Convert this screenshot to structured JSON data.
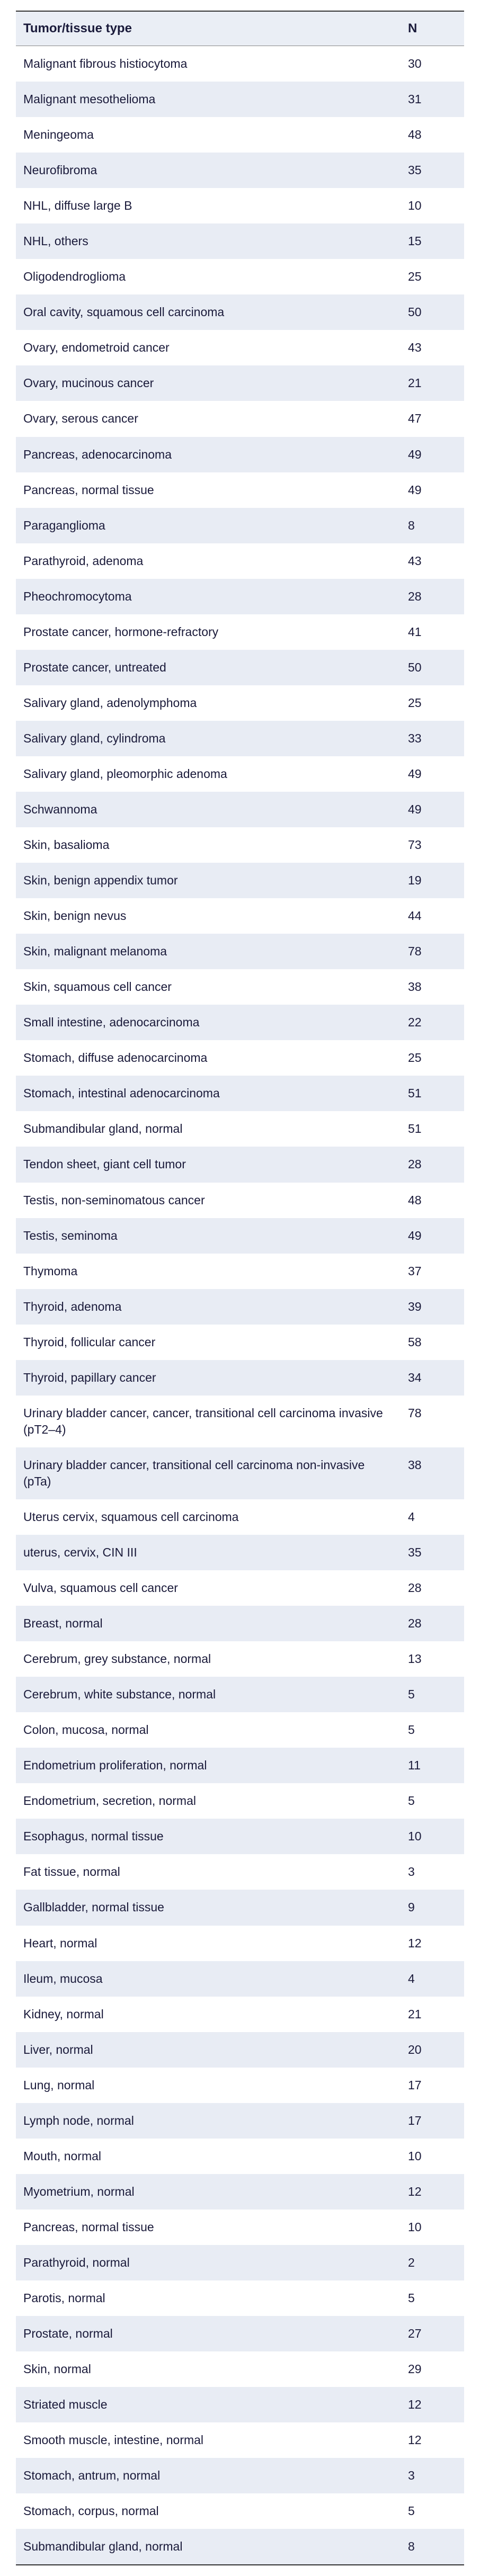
{
  "header": {
    "col1": "Tumor/tissue type",
    "col2": "N"
  },
  "rows": [
    {
      "name": "Malignant fibrous histiocytoma",
      "n": "30"
    },
    {
      "name": "Malignant mesothelioma",
      "n": "31"
    },
    {
      "name": "Meningeoma",
      "n": "48"
    },
    {
      "name": "Neurofibroma",
      "n": "35"
    },
    {
      "name": "NHL, diffuse large B",
      "n": "10"
    },
    {
      "name": "NHL, others",
      "n": "15"
    },
    {
      "name": "Oligodendroglioma",
      "n": "25"
    },
    {
      "name": "Oral cavity, squamous cell carcinoma",
      "n": "50"
    },
    {
      "name": "Ovary, endometroid cancer",
      "n": "43"
    },
    {
      "name": "Ovary, mucinous cancer",
      "n": "21"
    },
    {
      "name": "Ovary, serous cancer",
      "n": "47"
    },
    {
      "name": "Pancreas, adenocarcinoma",
      "n": "49"
    },
    {
      "name": "Pancreas, normal tissue",
      "n": "49"
    },
    {
      "name": "Paraganglioma",
      "n": "8"
    },
    {
      "name": "Parathyroid, adenoma",
      "n": "43"
    },
    {
      "name": "Pheochromocytoma",
      "n": "28"
    },
    {
      "name": "Prostate cancer, hormone-refractory",
      "n": "41"
    },
    {
      "name": "Prostate cancer, untreated",
      "n": "50"
    },
    {
      "name": "Salivary gland, adenolymphoma",
      "n": "25"
    },
    {
      "name": "Salivary gland, cylindroma",
      "n": "33"
    },
    {
      "name": "Salivary gland, pleomorphic adenoma",
      "n": "49"
    },
    {
      "name": "Schwannoma",
      "n": "49"
    },
    {
      "name": "Skin, basalioma",
      "n": "73"
    },
    {
      "name": "Skin, benign appendix tumor",
      "n": "19"
    },
    {
      "name": "Skin, benign nevus",
      "n": "44"
    },
    {
      "name": "Skin, malignant melanoma",
      "n": "78"
    },
    {
      "name": "Skin, squamous cell cancer",
      "n": "38"
    },
    {
      "name": "Small intestine, adenocarcinoma",
      "n": "22"
    },
    {
      "name": "Stomach, diffuse adenocarcinoma",
      "n": "25"
    },
    {
      "name": "Stomach, intestinal adenocarcinoma",
      "n": "51"
    },
    {
      "name": "Submandibular gland, normal",
      "n": "51"
    },
    {
      "name": "Tendon sheet, giant cell tumor",
      "n": "28"
    },
    {
      "name": "Testis, non-seminomatous cancer",
      "n": "48"
    },
    {
      "name": "Testis, seminoma",
      "n": "49"
    },
    {
      "name": "Thymoma",
      "n": "37"
    },
    {
      "name": "Thyroid, adenoma",
      "n": "39"
    },
    {
      "name": "Thyroid, follicular cancer",
      "n": "58"
    },
    {
      "name": "Thyroid, papillary cancer",
      "n": "34"
    },
    {
      "name": "Urinary bladder cancer, cancer, transitional cell carcinoma invasive (pT2–4)",
      "n": "78"
    },
    {
      "name": "Urinary bladder cancer, transitional cell carcinoma non-invasive (pTa)",
      "n": "38"
    },
    {
      "name": "Uterus cervix, squamous cell carcinoma",
      "n": "4"
    },
    {
      "name": "uterus, cervix, CIN III",
      "n": "35"
    },
    {
      "name": "Vulva, squamous cell cancer",
      "n": "28"
    },
    {
      "name": "Breast, normal",
      "n": "28"
    },
    {
      "name": "Cerebrum, grey substance, normal",
      "n": "13"
    },
    {
      "name": "Cerebrum, white substance, normal",
      "n": "5"
    },
    {
      "name": "Colon, mucosa, normal",
      "n": "5"
    },
    {
      "name": "Endometrium proliferation, normal",
      "n": "11"
    },
    {
      "name": "Endometrium, secretion, normal",
      "n": "5"
    },
    {
      "name": "Esophagus, normal tissue",
      "n": "10"
    },
    {
      "name": "Fat tissue, normal",
      "n": "3"
    },
    {
      "name": "Gallbladder, normal tissue",
      "n": "9"
    },
    {
      "name": "Heart, normal",
      "n": "12"
    },
    {
      "name": "Ileum, mucosa",
      "n": "4"
    },
    {
      "name": "Kidney, normal",
      "n": "21"
    },
    {
      "name": "Liver, normal",
      "n": "20"
    },
    {
      "name": "Lung, normal",
      "n": "17"
    },
    {
      "name": "Lymph node, normal",
      "n": "17"
    },
    {
      "name": "Mouth, normal",
      "n": "10"
    },
    {
      "name": "Myometrium, normal",
      "n": "12"
    },
    {
      "name": "Pancreas, normal tissue",
      "n": "10"
    },
    {
      "name": "Parathyroid, normal",
      "n": "2"
    },
    {
      "name": "Parotis, normal",
      "n": "5"
    },
    {
      "name": "Prostate, normal",
      "n": "27"
    },
    {
      "name": "Skin, normal",
      "n": "29"
    },
    {
      "name": "Striated muscle",
      "n": "12"
    },
    {
      "name": "Smooth muscle, intestine, normal",
      "n": "12"
    },
    {
      "name": "Stomach, antrum, normal",
      "n": "3"
    },
    {
      "name": "Stomach, corpus, normal",
      "n": "5"
    },
    {
      "name": "Submandibular gland, normal",
      "n": "8"
    }
  ],
  "style": {
    "header_bg": "#eaeef5",
    "row_even_bg": "#ffffff",
    "row_odd_bg": "#e8ecf4",
    "text_color": "#1a1a3a",
    "font_size_header": 24,
    "font_size_body": 23
  }
}
